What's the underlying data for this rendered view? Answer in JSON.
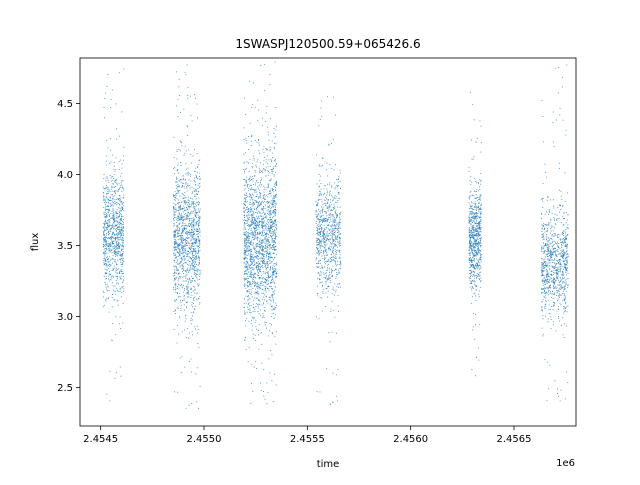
{
  "chart_data": {
    "type": "scatter",
    "title": "1SWASPJ120500.59+065426.6",
    "xlabel": "time",
    "ylabel": "flux",
    "x_offset_label": "1e6",
    "xlim": [
      2.4544,
      2.4568
    ],
    "ylim": [
      2.23,
      4.82
    ],
    "x_ticks": [
      2.4545,
      2.455,
      2.4555,
      2.456,
      2.4565
    ],
    "x_tick_labels": [
      "2.4545",
      "2.4550",
      "2.4555",
      "2.4560",
      "2.4565"
    ],
    "y_ticks": [
      2.5,
      3.0,
      3.5,
      4.0,
      4.5
    ],
    "y_tick_labels": [
      "2.5",
      "3.0",
      "3.5",
      "4.0",
      "4.5"
    ],
    "marker_color": "#1f77b4",
    "grid": false,
    "clusters": [
      {
        "x_start": 2.45451,
        "x_end": 2.45461,
        "y_center": 3.58,
        "y_spread": 0.22,
        "y_min": 2.37,
        "y_max": 4.78,
        "density": 1.0
      },
      {
        "x_start": 2.45485,
        "x_end": 2.45498,
        "y_center": 3.55,
        "y_spread": 0.25,
        "y_min": 2.35,
        "y_max": 4.78,
        "density": 1.4
      },
      {
        "x_start": 2.45519,
        "x_end": 2.45535,
        "y_center": 3.55,
        "y_spread": 0.28,
        "y_min": 2.35,
        "y_max": 4.8,
        "density": 2.0
      },
      {
        "x_start": 2.45554,
        "x_end": 2.45566,
        "y_center": 3.57,
        "y_spread": 0.2,
        "y_min": 2.36,
        "y_max": 4.62,
        "density": 0.9
      },
      {
        "x_start": 2.45628,
        "x_end": 2.45634,
        "y_center": 3.55,
        "y_spread": 0.17,
        "y_min": 2.47,
        "y_max": 4.63,
        "density": 0.8
      },
      {
        "x_start": 2.45663,
        "x_end": 2.45676,
        "y_center": 3.38,
        "y_spread": 0.18,
        "y_min": 2.37,
        "y_max": 4.78,
        "density": 1.0
      }
    ]
  }
}
